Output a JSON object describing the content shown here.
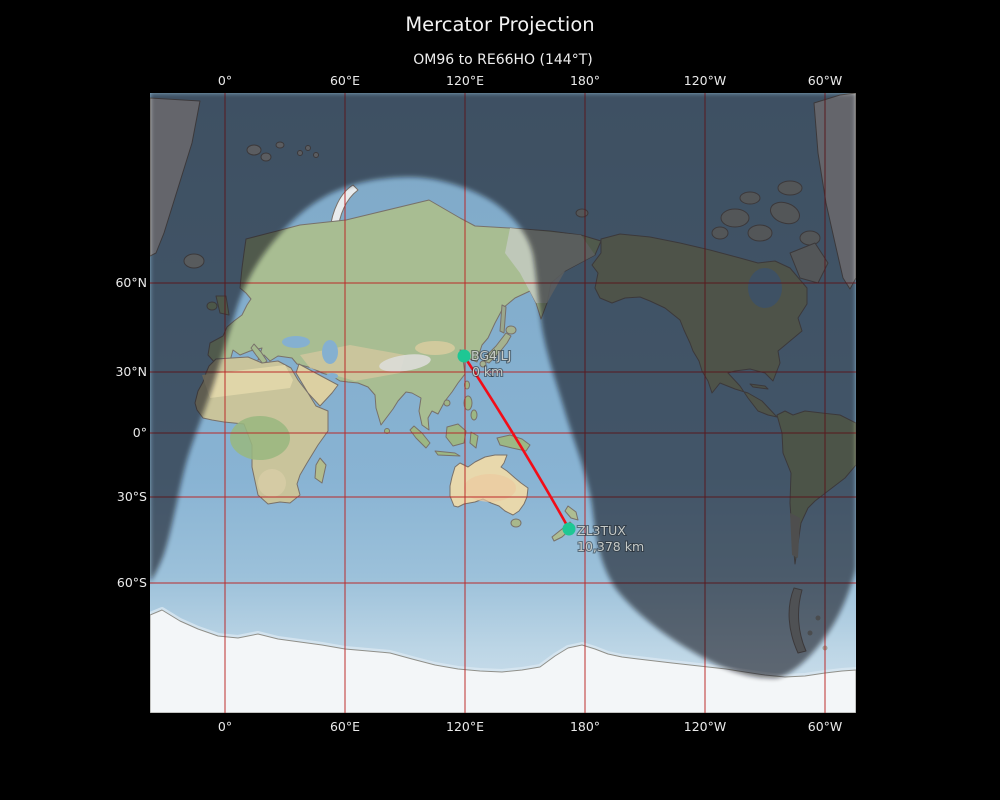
{
  "title": "Mercator Projection",
  "subtitle": "OM96 to RE66HO (144°T)",
  "projection": "Mercator",
  "axes": {
    "lon_ticks": [
      "0°",
      "60°E",
      "120°E",
      "180°",
      "120°W",
      "60°W"
    ],
    "lat_ticks": [
      "60°N",
      "30°N",
      "0°",
      "30°S",
      "60°S"
    ]
  },
  "route": {
    "from_grid": "OM96",
    "to_grid": "RE66HO",
    "bearing": "144°T",
    "from_marker": {
      "callsign": "BG4JLJ",
      "distance": "0 km"
    },
    "to_marker": {
      "callsign": "ZL3TUX",
      "distance": "10,378 km"
    }
  },
  "colors": {
    "background": "#000000",
    "grid": "#bb2323",
    "track": "#f20d18",
    "marker": "#1ec794",
    "day_ocean": "#86b2d2",
    "night_shade": "#0c1018",
    "tick_label": "#eaeaea",
    "marker_label": "#c6cac7"
  }
}
